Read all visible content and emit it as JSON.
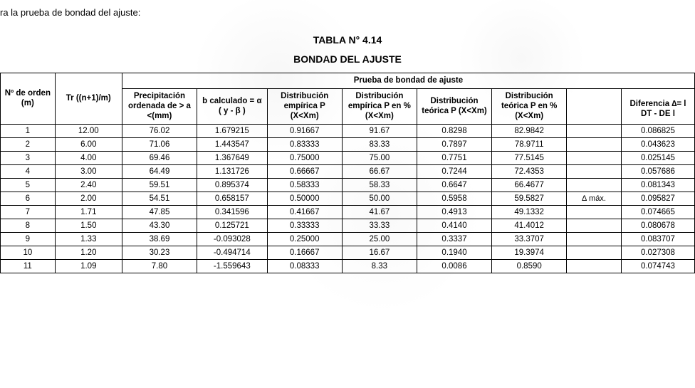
{
  "intro_text": "ra la prueba de bondad del ajuste:",
  "title_line1": "TABLA N° 4.14",
  "title_line2": "BONDAD DEL AJUSTE",
  "group_header": "Prueba de bondad de ajuste",
  "headers": {
    "m": "Nº de orden (m)",
    "tr": "Tr ((n+1)/m)",
    "precip": "Precipitación ordenada de > a <(mm)",
    "b": "b calculado = α ( y - β )",
    "de_p": "Distribución empírica P (X<Xm)",
    "de_pct": "Distribución empírica P en % (X<Xm)",
    "dt_p": "Distribución teórica P (X<Xm)",
    "dt_pct": "Distribución teórica P   en %   (X<Xm)",
    "diff": "Diferencia ∆= l DT - DE l"
  },
  "delta_max_label": "∆ máx.",
  "rows": [
    {
      "m": "1",
      "tr": "12.00",
      "precip": "76.02",
      "b": "1.679215",
      "de_p": "0.91667",
      "de_pct": "91.67",
      "dt_p": "0.8298",
      "dt_pct": "82.9842",
      "note": "",
      "diff": "0.086825"
    },
    {
      "m": "2",
      "tr": "6.00",
      "precip": "71.06",
      "b": "1.443547",
      "de_p": "0.83333",
      "de_pct": "83.33",
      "dt_p": "0.7897",
      "dt_pct": "78.9711",
      "note": "",
      "diff": "0.043623"
    },
    {
      "m": "3",
      "tr": "4.00",
      "precip": "69.46",
      "b": "1.367649",
      "de_p": "0.75000",
      "de_pct": "75.00",
      "dt_p": "0.7751",
      "dt_pct": "77.5145",
      "note": "",
      "diff": "0.025145"
    },
    {
      "m": "4",
      "tr": "3.00",
      "precip": "64.49",
      "b": "1.131726",
      "de_p": "0.66667",
      "de_pct": "66.67",
      "dt_p": "0.7244",
      "dt_pct": "72.4353",
      "note": "",
      "diff": "0.057686"
    },
    {
      "m": "5",
      "tr": "2.40",
      "precip": "59.51",
      "b": "0.895374",
      "de_p": "0.58333",
      "de_pct": "58.33",
      "dt_p": "0.6647",
      "dt_pct": "66.4677",
      "note": "",
      "diff": "0.081343"
    },
    {
      "m": "6",
      "tr": "2.00",
      "precip": "54.51",
      "b": "0.658157",
      "de_p": "0.50000",
      "de_pct": "50.00",
      "dt_p": "0.5958",
      "dt_pct": "59.5827",
      "note": "∆ máx.",
      "diff": "0.095827"
    },
    {
      "m": "7",
      "tr": "1.71",
      "precip": "47.85",
      "b": "0.341596",
      "de_p": "0.41667",
      "de_pct": "41.67",
      "dt_p": "0.4913",
      "dt_pct": "49.1332",
      "note": "",
      "diff": "0.074665"
    },
    {
      "m": "8",
      "tr": "1.50",
      "precip": "43.30",
      "b": "0.125721",
      "de_p": "0.33333",
      "de_pct": "33.33",
      "dt_p": "0.4140",
      "dt_pct": "41.4012",
      "note": "",
      "diff": "0.080678"
    },
    {
      "m": "9",
      "tr": "1.33",
      "precip": "38.69",
      "b": "-0.093028",
      "de_p": "0.25000",
      "de_pct": "25.00",
      "dt_p": "0.3337",
      "dt_pct": "33.3707",
      "note": "",
      "diff": "0.083707"
    },
    {
      "m": "10",
      "tr": "1.20",
      "precip": "30.23",
      "b": "-0.494714",
      "de_p": "0.16667",
      "de_pct": "16.67",
      "dt_p": "0.1940",
      "dt_pct": "19.3974",
      "note": "",
      "diff": "0.027308"
    },
    {
      "m": "11",
      "tr": "1.09",
      "precip": "7.80",
      "b": "-1.559643",
      "de_p": "0.08333",
      "de_pct": "8.33",
      "dt_p": "0.0086",
      "dt_pct": "0.8590",
      "note": "",
      "diff": "0.074743"
    }
  ],
  "table_style": {
    "border_color": "#000000",
    "background_color": "#ffffff",
    "font_size_header": 11.5,
    "font_size_body": 11.5,
    "title_font_size": 14
  }
}
